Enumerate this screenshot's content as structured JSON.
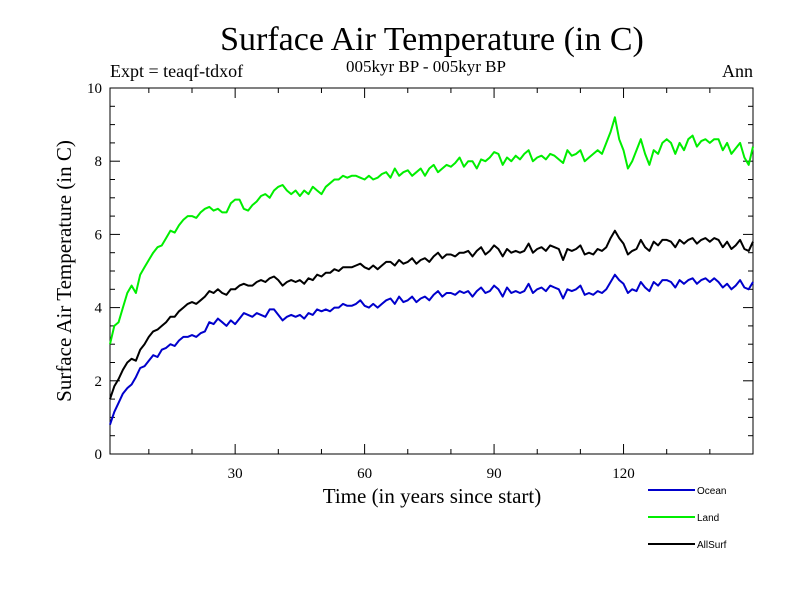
{
  "chart_data": {
    "type": "line",
    "title": "Surface Air Temperature (in C)",
    "subtitle": "005kyr BP - 005kyr BP",
    "annotation_left": "Expt = teaqf-tdxof",
    "annotation_right": "Ann",
    "xlabel": "Time (in years since start)",
    "ylabel": "Surface Air Temperature (in C)",
    "xlim": [
      1,
      150
    ],
    "ylim": [
      0,
      10
    ],
    "x_ticks": [
      30,
      60,
      90,
      120
    ],
    "y_ticks": [
      0,
      2,
      4,
      6,
      8,
      10
    ],
    "series": [
      {
        "name": "Ocean",
        "color": "#0000cc",
        "values": [
          0.8,
          1.15,
          1.4,
          1.65,
          1.8,
          1.9,
          2.1,
          2.35,
          2.4,
          2.55,
          2.7,
          2.65,
          2.85,
          2.9,
          3.0,
          2.95,
          3.1,
          3.2,
          3.2,
          3.25,
          3.2,
          3.3,
          3.35,
          3.6,
          3.55,
          3.7,
          3.6,
          3.5,
          3.65,
          3.55,
          3.7,
          3.85,
          3.8,
          3.75,
          3.85,
          3.8,
          3.75,
          3.95,
          3.95,
          3.8,
          3.65,
          3.75,
          3.8,
          3.75,
          3.8,
          3.7,
          3.85,
          3.8,
          3.95,
          3.9,
          3.95,
          3.9,
          4.0,
          4.0,
          4.1,
          4.05,
          4.05,
          4.1,
          4.2,
          4.05,
          4.0,
          4.1,
          4.0,
          4.1,
          4.2,
          4.25,
          4.1,
          4.3,
          4.15,
          4.2,
          4.3,
          4.15,
          4.25,
          4.3,
          4.2,
          4.35,
          4.45,
          4.3,
          4.4,
          4.4,
          4.35,
          4.45,
          4.4,
          4.45,
          4.3,
          4.45,
          4.55,
          4.4,
          4.45,
          4.6,
          4.5,
          4.3,
          4.55,
          4.4,
          4.45,
          4.4,
          4.45,
          4.65,
          4.4,
          4.5,
          4.55,
          4.45,
          4.6,
          4.55,
          4.5,
          4.25,
          4.5,
          4.45,
          4.5,
          4.6,
          4.35,
          4.4,
          4.35,
          4.45,
          4.4,
          4.5,
          4.7,
          4.9,
          4.75,
          4.65,
          4.4,
          4.5,
          4.45,
          4.7,
          4.55,
          4.45,
          4.7,
          4.6,
          4.75,
          4.75,
          4.7,
          4.55,
          4.75,
          4.65,
          4.75,
          4.8,
          4.65,
          4.75,
          4.8,
          4.7,
          4.8,
          4.7,
          4.55,
          4.65,
          4.5,
          4.6,
          4.75,
          4.55,
          4.5,
          4.7
        ]
      },
      {
        "name": "Land",
        "color": "#00ee00",
        "values": [
          3.0,
          3.5,
          3.6,
          4.0,
          4.4,
          4.6,
          4.4,
          4.9,
          5.1,
          5.3,
          5.5,
          5.65,
          5.7,
          5.9,
          6.1,
          6.05,
          6.25,
          6.4,
          6.5,
          6.5,
          6.45,
          6.6,
          6.7,
          6.75,
          6.65,
          6.7,
          6.6,
          6.6,
          6.85,
          6.95,
          6.95,
          6.7,
          6.65,
          6.8,
          6.9,
          7.05,
          7.1,
          7.0,
          7.2,
          7.3,
          7.35,
          7.2,
          7.1,
          7.2,
          7.05,
          7.2,
          7.1,
          7.3,
          7.2,
          7.1,
          7.3,
          7.4,
          7.5,
          7.5,
          7.6,
          7.55,
          7.6,
          7.6,
          7.55,
          7.5,
          7.6,
          7.5,
          7.55,
          7.65,
          7.7,
          7.55,
          7.8,
          7.6,
          7.7,
          7.75,
          7.6,
          7.7,
          7.8,
          7.6,
          7.8,
          7.9,
          7.7,
          7.8,
          7.9,
          7.85,
          7.95,
          8.1,
          7.85,
          8.0,
          8.0,
          7.8,
          8.05,
          8.0,
          8.1,
          8.25,
          8.2,
          7.9,
          8.1,
          8.0,
          8.15,
          8.05,
          8.2,
          8.3,
          8.0,
          8.1,
          8.15,
          8.05,
          8.2,
          8.15,
          8.05,
          7.95,
          8.3,
          8.15,
          8.2,
          8.3,
          8.0,
          8.1,
          8.2,
          8.3,
          8.2,
          8.5,
          8.8,
          9.2,
          8.6,
          8.3,
          7.8,
          8.0,
          8.3,
          8.6,
          8.2,
          7.9,
          8.3,
          8.2,
          8.5,
          8.6,
          8.5,
          8.2,
          8.5,
          8.3,
          8.6,
          8.7,
          8.4,
          8.55,
          8.6,
          8.5,
          8.6,
          8.6,
          8.3,
          8.5,
          8.2,
          8.35,
          8.5,
          8.1,
          7.9,
          8.4
        ]
      },
      {
        "name": "AllSurf",
        "color": "#000000",
        "values": [
          1.5,
          1.85,
          2.05,
          2.3,
          2.5,
          2.6,
          2.55,
          2.85,
          3.0,
          3.2,
          3.35,
          3.4,
          3.5,
          3.6,
          3.75,
          3.75,
          3.9,
          4.0,
          4.1,
          4.15,
          4.1,
          4.2,
          4.3,
          4.45,
          4.4,
          4.5,
          4.4,
          4.35,
          4.5,
          4.5,
          4.6,
          4.65,
          4.6,
          4.6,
          4.7,
          4.75,
          4.7,
          4.8,
          4.85,
          4.75,
          4.6,
          4.7,
          4.75,
          4.7,
          4.75,
          4.65,
          4.8,
          4.75,
          4.9,
          4.85,
          4.95,
          4.95,
          5.05,
          5.0,
          5.1,
          5.1,
          5.1,
          5.15,
          5.2,
          5.1,
          5.05,
          5.15,
          5.05,
          5.15,
          5.25,
          5.25,
          5.15,
          5.3,
          5.2,
          5.25,
          5.35,
          5.2,
          5.3,
          5.35,
          5.25,
          5.4,
          5.5,
          5.35,
          5.45,
          5.45,
          5.4,
          5.5,
          5.5,
          5.55,
          5.4,
          5.55,
          5.65,
          5.45,
          5.55,
          5.7,
          5.6,
          5.4,
          5.6,
          5.5,
          5.55,
          5.5,
          5.55,
          5.75,
          5.5,
          5.6,
          5.65,
          5.55,
          5.7,
          5.65,
          5.6,
          5.3,
          5.6,
          5.55,
          5.6,
          5.7,
          5.45,
          5.5,
          5.45,
          5.6,
          5.55,
          5.65,
          5.9,
          6.1,
          5.9,
          5.75,
          5.45,
          5.55,
          5.6,
          5.85,
          5.65,
          5.55,
          5.8,
          5.7,
          5.85,
          5.85,
          5.8,
          5.65,
          5.85,
          5.75,
          5.85,
          5.9,
          5.75,
          5.85,
          5.9,
          5.8,
          5.9,
          5.85,
          5.65,
          5.8,
          5.6,
          5.7,
          5.85,
          5.6,
          5.55,
          5.8
        ]
      }
    ],
    "legend_position": "bottom-right"
  }
}
